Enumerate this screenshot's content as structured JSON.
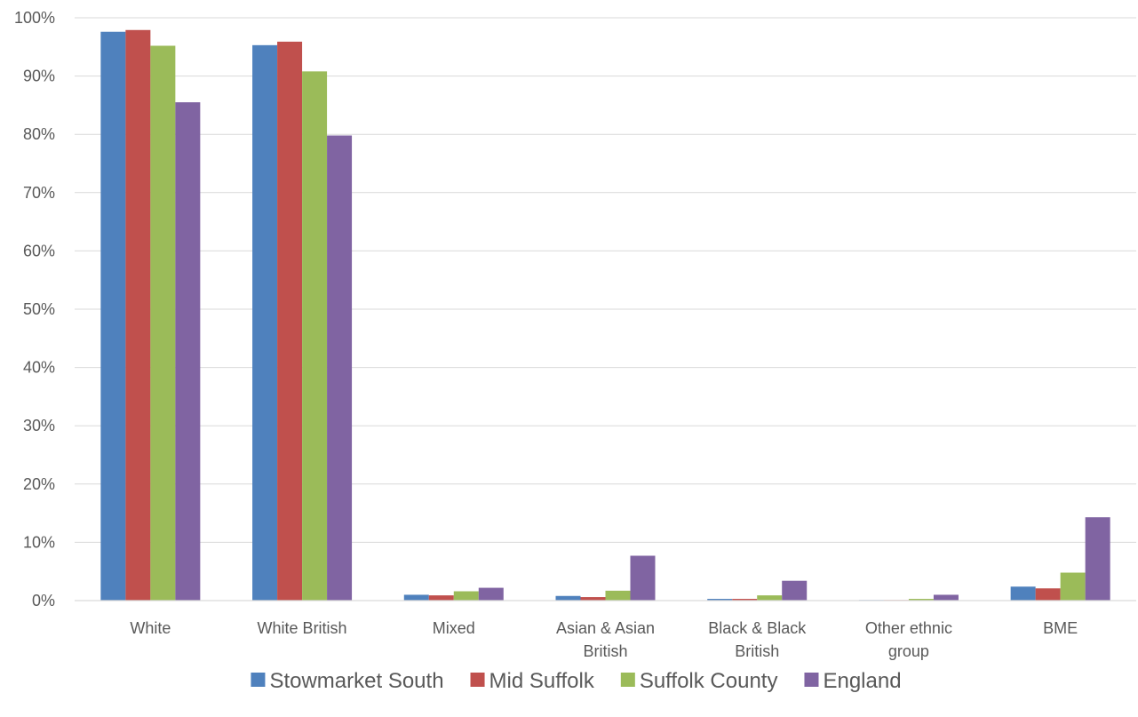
{
  "chart_data": {
    "type": "bar",
    "title": "",
    "xlabel": "",
    "ylabel": "",
    "ylim": [
      0,
      100
    ],
    "y_ticks": [
      "0%",
      "10%",
      "20%",
      "30%",
      "40%",
      "50%",
      "60%",
      "70%",
      "80%",
      "90%",
      "100%"
    ],
    "grid": true,
    "legend_position": "bottom",
    "categories": [
      [
        "White"
      ],
      [
        "White British"
      ],
      [
        "Mixed"
      ],
      [
        "Asian & Asian",
        "British"
      ],
      [
        "Black & Black",
        "British"
      ],
      [
        "Other ethnic",
        "group"
      ],
      [
        "BME"
      ]
    ],
    "series": [
      {
        "name": "Stowmarket South",
        "color": "#4f81bd",
        "values": [
          97.6,
          95.3,
          1.0,
          0.8,
          0.3,
          0.1,
          2.4
        ]
      },
      {
        "name": "Mid Suffolk",
        "color": "#c0504d",
        "values": [
          97.9,
          95.9,
          0.9,
          0.6,
          0.3,
          0.1,
          2.1
        ]
      },
      {
        "name": "Suffolk County",
        "color": "#9bbb59",
        "values": [
          95.2,
          90.8,
          1.6,
          1.7,
          0.9,
          0.3,
          4.8
        ]
      },
      {
        "name": "England",
        "color": "#8064a2",
        "values": [
          85.5,
          79.8,
          2.2,
          7.7,
          3.4,
          1.0,
          14.3
        ]
      }
    ]
  }
}
